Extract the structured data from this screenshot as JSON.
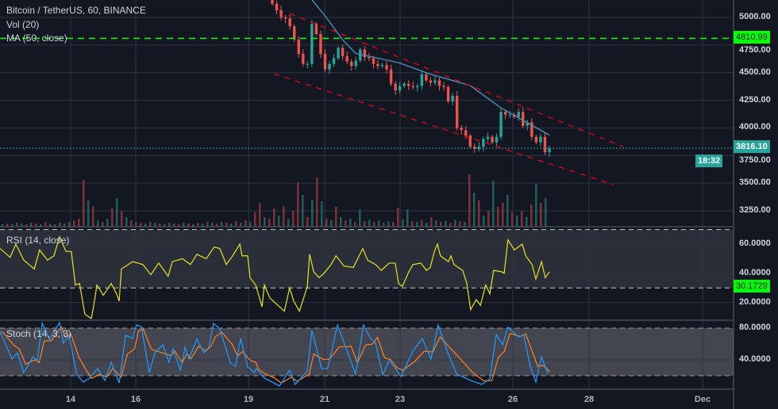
{
  "colors": {
    "background": "#131722",
    "grid": "#2f3341",
    "up": "#26a69a",
    "down": "#ef5350",
    "volume_up": "#1f5f5b",
    "volume_down": "#7a3338",
    "ma": "#4a86ad",
    "rsi": "#e5e51c",
    "stoch_k": "#2196f3",
    "stoch_d": "#f57c20",
    "level_line": "#00ff00",
    "trend_lines": "#d0021b",
    "last_price": "#26a69a"
  },
  "legend": {
    "title": "Bitcoin / TetherUS, 60, BINANCE",
    "volume": "Vol (20)",
    "ma": "MA (50, close)",
    "rsi": "RSI (14, close)",
    "stoch": "Stoch (14, 3, 3)"
  },
  "price_axis": {
    "labels": [
      "5000.00",
      "4750.00",
      "4500.00",
      "4250.00",
      "4000.00",
      "3750.00",
      "3500.00",
      "3250.00"
    ],
    "level_tag": "4810.99",
    "last_price_tag": "3816.10",
    "countdown_tag": "18:32"
  },
  "rsi_axis": {
    "labels": [
      "60.0000",
      "40.0000",
      "20.0000"
    ],
    "level_tag": "30.1729"
  },
  "stoch_axis": {
    "labels": [
      "80.0000",
      "40.0000"
    ]
  },
  "time_axis": {
    "labels": [
      "14",
      "16",
      "19",
      "21",
      "23",
      "26",
      "28",
      "Dec"
    ]
  },
  "chart_data": [
    {
      "type": "candlestick",
      "title": "Bitcoin / TetherUS, 60, BINANCE",
      "ylim": [
        3150,
        5150
      ],
      "y_ticks": [
        5000,
        4750,
        4500,
        4250,
        4000,
        3750,
        3500,
        3250
      ],
      "closes": [
        5123,
        5065,
        5000,
        4990,
        4920,
        4800,
        4670,
        4580,
        4580,
        4940,
        4850,
        4670,
        4530,
        4580,
        4630,
        4725,
        4650,
        4600,
        4560,
        4610,
        4710,
        4640,
        4630,
        4580,
        4560,
        4570,
        4530,
        4400,
        4340,
        4380,
        4400,
        4380,
        4370,
        4380,
        4485,
        4430,
        4410,
        4430,
        4380,
        4370,
        4240,
        4290,
        4000,
        3980,
        3930,
        3830,
        3810,
        3830,
        3900,
        3920,
        3870,
        3920,
        4145,
        4120,
        4120,
        4100,
        4145,
        4020,
        4050,
        3920,
        3870,
        3920,
        3780,
        3816
      ],
      "ma50": [
        [
          9,
          5160
        ],
        [
          12,
          5015
        ],
        [
          16,
          4797
        ],
        [
          19,
          4674
        ],
        [
          25,
          4623
        ],
        [
          29,
          4587
        ],
        [
          36,
          4486
        ],
        [
          45,
          4384
        ],
        [
          52,
          4181
        ],
        [
          63,
          3935
        ]
      ],
      "horizontal_level": 4810.99,
      "last_price": 3816.1,
      "volume": [
        3,
        -4,
        3,
        -5,
        4,
        -3,
        5,
        -4,
        3,
        -6,
        4,
        -3,
        5,
        -4,
        6,
        -8,
        -10,
        -59,
        33,
        -26,
        8,
        -6,
        10,
        -23,
        36,
        -20,
        12,
        -8,
        6,
        -5,
        4,
        -6,
        5,
        -4,
        3,
        -5,
        4,
        -3,
        5,
        -4,
        3,
        -5,
        4,
        -6,
        5,
        -4,
        6,
        -5,
        4,
        -7,
        5,
        -8,
        6,
        -18,
        -30,
        12,
        -10,
        -23,
        14,
        -26,
        10,
        -20,
        -56,
        40,
        -12,
        34,
        -62,
        32,
        -10,
        8,
        -25,
        12,
        -8,
        10,
        -6,
        22,
        -7,
        9,
        -6,
        8,
        -5,
        7,
        -6,
        -24,
        9,
        22,
        -7,
        6,
        -8,
        5,
        -12,
        8,
        -6,
        7,
        -5,
        9,
        -7,
        6,
        -66,
        43,
        -33,
        14,
        -20,
        58,
        -25,
        -30,
        40,
        -18,
        14,
        -20,
        12,
        -28,
        54,
        -30,
        36
      ]
    },
    {
      "type": "line",
      "title": "RSI (14, close)",
      "ylim": [
        0,
        75
      ],
      "levels": [
        70,
        30
      ],
      "horizontal_level": 30.1729,
      "points": [
        [
          12.4,
          57
        ],
        [
          12.67,
          51
        ],
        [
          12.82,
          60
        ],
        [
          13.03,
          49
        ],
        [
          13.31,
          43
        ],
        [
          13.45,
          56
        ],
        [
          13.66,
          49
        ],
        [
          13.83,
          52
        ],
        [
          13.98,
          65
        ],
        [
          14.15,
          55
        ],
        [
          14.29,
          55
        ],
        [
          14.4,
          32
        ],
        [
          14.51,
          33
        ],
        [
          14.65,
          12
        ],
        [
          14.82,
          9
        ],
        [
          14.88,
          17
        ],
        [
          14.97,
          32
        ],
        [
          15.14,
          25
        ],
        [
          15.35,
          33
        ],
        [
          15.49,
          26
        ],
        [
          15.56,
          21
        ],
        [
          15.62,
          43
        ],
        [
          15.92,
          48
        ],
        [
          16.19,
          46
        ],
        [
          16.4,
          39
        ],
        [
          16.61,
          47
        ],
        [
          16.86,
          38
        ],
        [
          16.97,
          48
        ],
        [
          17.24,
          50
        ],
        [
          17.45,
          46
        ],
        [
          17.62,
          53
        ],
        [
          17.87,
          50
        ],
        [
          18.08,
          58
        ],
        [
          18.23,
          57
        ],
        [
          18.4,
          46
        ],
        [
          18.57,
          52
        ],
        [
          18.76,
          60
        ],
        [
          18.82,
          52
        ],
        [
          18.97,
          52
        ],
        [
          19.03,
          37
        ],
        [
          19.18,
          32
        ],
        [
          19.35,
          17
        ],
        [
          19.41,
          32
        ],
        [
          19.56,
          23
        ],
        [
          19.73,
          19
        ],
        [
          19.94,
          14
        ],
        [
          20.08,
          30
        ],
        [
          20.19,
          21
        ],
        [
          20.34,
          14
        ],
        [
          20.44,
          22
        ],
        [
          20.55,
          31
        ],
        [
          20.61,
          53
        ],
        [
          20.72,
          41
        ],
        [
          20.86,
          37
        ],
        [
          20.99,
          40
        ],
        [
          21.18,
          46
        ],
        [
          21.31,
          52
        ],
        [
          21.52,
          45
        ],
        [
          21.77,
          44
        ],
        [
          22.02,
          57
        ],
        [
          22.15,
          49
        ],
        [
          22.36,
          46
        ],
        [
          22.51,
          42
        ],
        [
          22.72,
          47
        ],
        [
          22.88,
          47
        ],
        [
          22.97,
          33
        ],
        [
          23.07,
          31
        ],
        [
          23.24,
          41
        ],
        [
          23.35,
          46
        ],
        [
          23.56,
          47
        ],
        [
          23.71,
          42
        ],
        [
          23.81,
          44
        ],
        [
          23.92,
          55
        ],
        [
          24.0,
          60
        ],
        [
          24.08,
          52
        ],
        [
          24.29,
          48
        ],
        [
          24.36,
          52
        ],
        [
          24.44,
          46
        ],
        [
          24.67,
          42
        ],
        [
          24.78,
          33
        ],
        [
          24.88,
          15
        ],
        [
          25.03,
          22
        ],
        [
          25.14,
          18
        ],
        [
          25.28,
          32
        ],
        [
          25.39,
          26
        ],
        [
          25.49,
          42
        ],
        [
          25.71,
          41
        ],
        [
          25.77,
          40
        ],
        [
          25.87,
          63
        ],
        [
          26.04,
          56
        ],
        [
          26.25,
          60
        ],
        [
          26.34,
          52
        ],
        [
          26.51,
          46
        ],
        [
          26.61,
          36
        ],
        [
          26.76,
          48
        ],
        [
          26.86,
          37
        ],
        [
          26.97,
          41
        ]
      ]
    },
    {
      "type": "line",
      "title": "Stoch (14, 3, 3)",
      "ylim": [
        -3,
        90
      ],
      "levels": [
        80,
        20
      ],
      "k_points": [
        [
          12.4,
          76
        ],
        [
          12.72,
          41
        ],
        [
          12.86,
          49
        ],
        [
          13.03,
          24
        ],
        [
          13.28,
          44
        ],
        [
          13.39,
          39
        ],
        [
          13.52,
          86
        ],
        [
          13.71,
          66
        ],
        [
          13.98,
          87
        ],
        [
          14.08,
          61
        ],
        [
          14.23,
          71
        ],
        [
          14.44,
          21
        ],
        [
          14.61,
          12
        ],
        [
          14.78,
          17
        ],
        [
          14.99,
          29
        ],
        [
          15.18,
          14
        ],
        [
          15.35,
          37
        ],
        [
          15.56,
          11
        ],
        [
          15.73,
          71
        ],
        [
          15.92,
          67
        ],
        [
          16.02,
          84
        ],
        [
          16.15,
          82
        ],
        [
          16.36,
          24
        ],
        [
          16.51,
          49
        ],
        [
          16.72,
          59
        ],
        [
          16.88,
          37
        ],
        [
          16.99,
          54
        ],
        [
          17.18,
          27
        ],
        [
          17.31,
          56
        ],
        [
          17.41,
          41
        ],
        [
          17.62,
          66
        ],
        [
          17.81,
          49
        ],
        [
          17.94,
          56
        ],
        [
          18.06,
          86
        ],
        [
          18.23,
          79
        ],
        [
          18.51,
          36
        ],
        [
          18.65,
          32
        ],
        [
          18.78,
          67
        ],
        [
          18.97,
          31
        ],
        [
          19.14,
          24
        ],
        [
          19.2,
          29
        ],
        [
          19.41,
          17
        ],
        [
          19.62,
          12
        ],
        [
          19.81,
          7
        ],
        [
          20.08,
          27
        ],
        [
          20.23,
          9
        ],
        [
          20.55,
          26
        ],
        [
          20.67,
          77
        ],
        [
          20.93,
          29
        ],
        [
          21.09,
          29
        ],
        [
          21.35,
          84
        ],
        [
          21.56,
          57
        ],
        [
          21.66,
          44
        ],
        [
          21.83,
          22
        ],
        [
          22.04,
          84
        ],
        [
          22.23,
          67
        ],
        [
          22.36,
          61
        ],
        [
          22.55,
          21
        ],
        [
          22.72,
          39
        ],
        [
          22.86,
          31
        ],
        [
          23.03,
          19
        ],
        [
          23.35,
          51
        ],
        [
          23.6,
          67
        ],
        [
          23.83,
          41
        ],
        [
          24.02,
          84
        ],
        [
          24.29,
          47
        ],
        [
          24.51,
          22
        ],
        [
          24.88,
          14
        ],
        [
          25.18,
          9
        ],
        [
          25.39,
          16
        ],
        [
          25.56,
          72
        ],
        [
          25.73,
          59
        ],
        [
          25.87,
          81
        ],
        [
          26.15,
          69
        ],
        [
          26.29,
          71
        ],
        [
          26.46,
          32
        ],
        [
          26.61,
          12
        ],
        [
          26.76,
          44
        ],
        [
          26.93,
          22
        ]
      ]
    }
  ]
}
